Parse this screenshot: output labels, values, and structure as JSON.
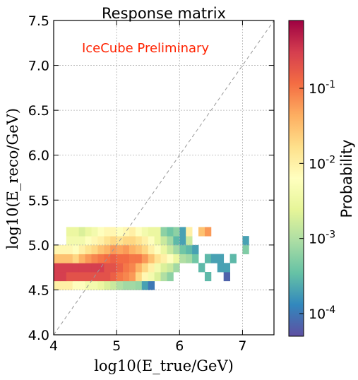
{
  "chart_data": {
    "type": "heatmap",
    "title": "Response matrix",
    "annotation": "IceCube Preliminary",
    "xlabel": "log10(E_true/GeV)",
    "ylabel": "log10(E_reco/GeV)",
    "xlim": [
      4.0,
      7.5
    ],
    "ylim": [
      4.0,
      7.5
    ],
    "x_ticks": [
      "4",
      "5",
      "6",
      "7"
    ],
    "y_ticks": [
      "4.0",
      "4.5",
      "5.0",
      "5.5",
      "6.0",
      "6.5",
      "7.0",
      "7.5"
    ],
    "grid": true,
    "bin_width": 0.1,
    "diagonal": true,
    "colorbar": {
      "label": "Probability",
      "scale": "log",
      "vmin": 5e-05,
      "vmax": 0.8,
      "tick_labels": [
        "10^-4",
        "10^-3",
        "10^-2",
        "10^-1"
      ],
      "tick_values": [
        0.0001,
        0.001,
        0.01,
        0.1
      ],
      "colormap": [
        "#5e4fa2",
        "#3288bd",
        "#66c2a5",
        "#abdda4",
        "#e6f598",
        "#ffffbf",
        "#fee08b",
        "#fdae61",
        "#f46d43",
        "#d53e4f",
        "#9e0142"
      ]
    },
    "cells": [
      [
        4.0,
        4.5,
        0.01
      ],
      [
        4.1,
        4.5,
        0.01
      ],
      [
        4.2,
        4.5,
        0.01
      ],
      [
        4.3,
        4.5,
        0.006
      ],
      [
        4.4,
        4.5,
        0.006
      ],
      [
        4.5,
        4.5,
        0.004
      ],
      [
        4.6,
        4.5,
        0.004
      ],
      [
        4.7,
        4.5,
        0.003
      ],
      [
        4.8,
        4.5,
        0.002
      ],
      [
        4.9,
        4.5,
        0.0015
      ],
      [
        5.0,
        4.5,
        0.001
      ],
      [
        5.1,
        4.5,
        0.0008
      ],
      [
        5.2,
        4.5,
        0.0008
      ],
      [
        5.3,
        4.5,
        0.0007
      ],
      [
        5.4,
        4.5,
        0.0002
      ],
      [
        5.5,
        4.5,
        0.0001
      ],
      [
        4.0,
        4.6,
        0.3
      ],
      [
        4.1,
        4.6,
        0.3
      ],
      [
        4.2,
        4.6,
        0.2
      ],
      [
        4.3,
        4.6,
        0.2
      ],
      [
        4.4,
        4.6,
        0.2
      ],
      [
        4.5,
        4.6,
        0.2
      ],
      [
        4.6,
        4.6,
        0.2
      ],
      [
        4.7,
        4.6,
        0.2
      ],
      [
        4.8,
        4.6,
        0.2
      ],
      [
        4.9,
        4.6,
        0.15
      ],
      [
        5.0,
        4.6,
        0.1
      ],
      [
        5.1,
        4.6,
        0.08
      ],
      [
        5.2,
        4.6,
        0.06
      ],
      [
        5.3,
        4.6,
        0.02
      ],
      [
        5.4,
        4.6,
        0.008
      ],
      [
        5.5,
        4.6,
        0.004
      ],
      [
        5.6,
        4.6,
        0.002
      ],
      [
        5.7,
        4.6,
        0.001
      ],
      [
        5.8,
        4.6,
        0.0006
      ],
      [
        6.4,
        4.6,
        0.0003
      ],
      [
        6.7,
        4.6,
        7e-05
      ],
      [
        4.0,
        4.7,
        0.3
      ],
      [
        4.1,
        4.7,
        0.3
      ],
      [
        4.2,
        4.7,
        0.3
      ],
      [
        4.3,
        4.7,
        0.3
      ],
      [
        4.4,
        4.7,
        0.3
      ],
      [
        4.5,
        4.7,
        0.3
      ],
      [
        4.6,
        4.7,
        0.3
      ],
      [
        4.7,
        4.7,
        0.3
      ],
      [
        4.8,
        4.7,
        0.2
      ],
      [
        4.9,
        4.7,
        0.2
      ],
      [
        5.0,
        4.7,
        0.15
      ],
      [
        5.1,
        4.7,
        0.1
      ],
      [
        5.2,
        4.7,
        0.08
      ],
      [
        5.3,
        4.7,
        0.04
      ],
      [
        5.4,
        4.7,
        0.02
      ],
      [
        5.5,
        4.7,
        0.01
      ],
      [
        5.6,
        4.7,
        0.004
      ],
      [
        5.7,
        4.7,
        0.002
      ],
      [
        5.8,
        4.7,
        0.0015
      ],
      [
        5.9,
        4.7,
        0.0008
      ],
      [
        6.3,
        4.7,
        0.0003
      ],
      [
        6.6,
        4.7,
        0.0002
      ],
      [
        6.7,
        4.7,
        0.0002
      ],
      [
        4.0,
        4.8,
        0.03
      ],
      [
        4.1,
        4.8,
        0.03
      ],
      [
        4.2,
        4.8,
        0.03
      ],
      [
        4.3,
        4.8,
        0.02
      ],
      [
        4.4,
        4.8,
        0.04
      ],
      [
        4.5,
        4.8,
        0.06
      ],
      [
        4.6,
        4.8,
        0.08
      ],
      [
        4.7,
        4.8,
        0.1
      ],
      [
        4.8,
        4.8,
        0.12
      ],
      [
        4.9,
        4.8,
        0.15
      ],
      [
        5.0,
        4.8,
        0.12
      ],
      [
        5.1,
        4.8,
        0.12
      ],
      [
        5.2,
        4.8,
        0.1
      ],
      [
        5.3,
        4.8,
        0.1
      ],
      [
        5.4,
        4.8,
        0.06
      ],
      [
        5.5,
        4.8,
        0.03
      ],
      [
        5.6,
        4.8,
        0.015
      ],
      [
        5.7,
        4.8,
        0.01
      ],
      [
        5.8,
        4.8,
        0.006
      ],
      [
        5.9,
        4.8,
        0.003
      ],
      [
        6.0,
        4.8,
        0.001
      ],
      [
        6.1,
        4.8,
        0.0008
      ],
      [
        6.2,
        4.8,
        0.0004
      ],
      [
        6.4,
        4.8,
        0.0003
      ],
      [
        6.5,
        4.8,
        0.0002
      ],
      [
        6.6,
        4.8,
        0.0002
      ],
      [
        6.8,
        4.8,
        0.0003
      ],
      [
        4.0,
        4.9,
        0.008
      ],
      [
        4.1,
        4.9,
        0.008
      ],
      [
        4.2,
        4.9,
        0.008
      ],
      [
        4.3,
        4.9,
        0.006
      ],
      [
        4.4,
        4.9,
        0.01
      ],
      [
        4.5,
        4.9,
        0.015
      ],
      [
        4.6,
        4.9,
        0.02
      ],
      [
        4.7,
        4.9,
        0.03
      ],
      [
        4.8,
        4.9,
        0.04
      ],
      [
        4.9,
        4.9,
        0.06
      ],
      [
        5.0,
        4.9,
        0.05
      ],
      [
        5.1,
        4.9,
        0.06
      ],
      [
        5.2,
        4.9,
        0.04
      ],
      [
        5.3,
        4.9,
        0.03
      ],
      [
        5.4,
        4.9,
        0.02
      ],
      [
        5.5,
        4.9,
        0.01
      ],
      [
        5.6,
        4.9,
        0.006
      ],
      [
        5.7,
        4.9,
        0.003
      ],
      [
        5.8,
        4.9,
        0.0015
      ],
      [
        5.9,
        4.9,
        0.0008
      ],
      [
        6.0,
        4.9,
        0.0004
      ],
      [
        6.1,
        4.9,
        0.0003
      ],
      [
        6.2,
        4.9,
        0.0002
      ],
      [
        7.0,
        4.9,
        0.0005
      ],
      [
        4.2,
        5.0,
        0.004
      ],
      [
        4.3,
        5.0,
        0.004
      ],
      [
        4.4,
        5.0,
        0.004
      ],
      [
        4.5,
        5.0,
        0.006
      ],
      [
        4.6,
        5.0,
        0.008
      ],
      [
        4.7,
        5.0,
        0.01
      ],
      [
        4.8,
        5.0,
        0.015
      ],
      [
        4.9,
        5.0,
        0.02
      ],
      [
        5.0,
        5.0,
        0.015
      ],
      [
        5.1,
        5.0,
        0.02
      ],
      [
        5.2,
        5.0,
        0.02
      ],
      [
        5.3,
        5.0,
        0.015
      ],
      [
        5.4,
        5.0,
        0.01
      ],
      [
        5.5,
        5.0,
        0.006
      ],
      [
        5.6,
        5.0,
        0.003
      ],
      [
        5.7,
        5.0,
        0.0015
      ],
      [
        5.8,
        5.0,
        0.0008
      ],
      [
        5.9,
        5.0,
        0.0003
      ],
      [
        6.0,
        5.0,
        0.0002
      ],
      [
        6.1,
        5.0,
        0.0015
      ],
      [
        7.0,
        5.0,
        0.0002
      ],
      [
        4.2,
        5.1,
        0.003
      ],
      [
        4.3,
        5.1,
        0.003
      ],
      [
        4.4,
        5.1,
        0.002
      ],
      [
        4.5,
        5.1,
        0.003
      ],
      [
        4.6,
        5.1,
        0.004
      ],
      [
        4.7,
        5.1,
        0.006
      ],
      [
        4.8,
        5.1,
        0.008
      ],
      [
        4.9,
        5.1,
        0.008
      ],
      [
        5.0,
        5.1,
        0.006
      ],
      [
        5.1,
        5.1,
        0.008
      ],
      [
        5.2,
        5.1,
        0.01
      ],
      [
        5.3,
        5.1,
        0.006
      ],
      [
        5.4,
        5.1,
        0.004
      ],
      [
        5.5,
        5.1,
        0.003
      ],
      [
        5.6,
        5.1,
        0.003
      ],
      [
        5.7,
        5.1,
        0.0006
      ],
      [
        5.8,
        5.1,
        0.0004
      ],
      [
        5.9,
        5.1,
        0.0006
      ],
      [
        6.0,
        5.1,
        0.0002
      ],
      [
        6.1,
        5.1,
        0.01
      ],
      [
        6.3,
        5.1,
        0.03
      ],
      [
        6.4,
        5.1,
        0.06
      ]
    ]
  }
}
